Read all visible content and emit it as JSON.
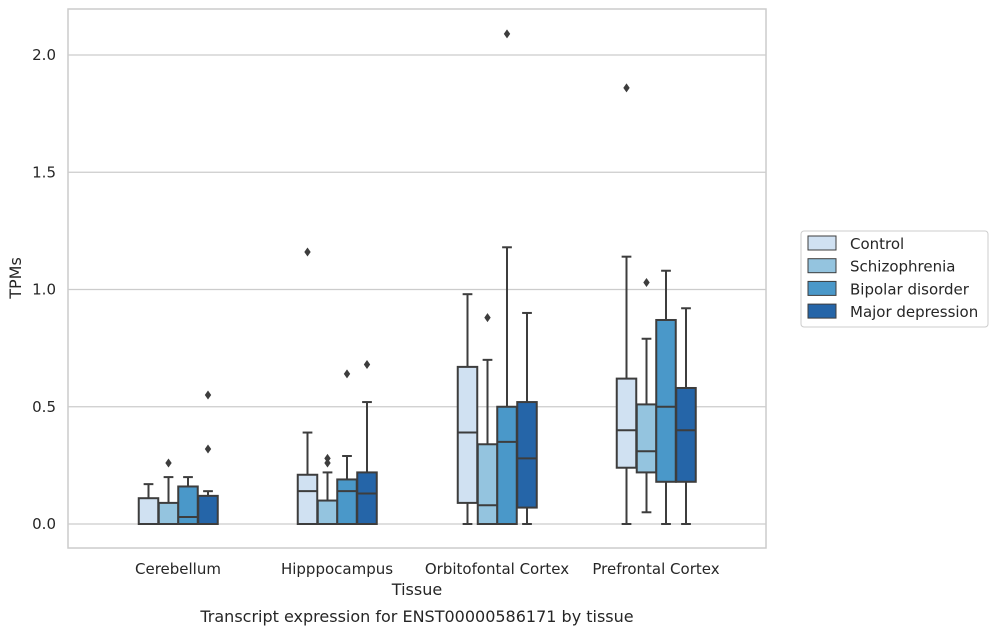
{
  "chart_data": {
    "type": "box",
    "title": "",
    "xlabel": "Tissue",
    "ylabel": "TPMs",
    "caption": "Transcript expression for ENST00000586171 by tissue",
    "ylim": [
      -0.1,
      2.2
    ],
    "yticks": [
      "0.0",
      "0.5",
      "1.0",
      "1.5",
      "2.0"
    ],
    "categories": [
      "Cerebellum",
      "Hipppocampus",
      "Orbitofontal Cortex",
      "Prefrontal Cortex"
    ],
    "grid": true,
    "legend_position": "right",
    "series": [
      {
        "name": "Control",
        "color": "#d0e1f2",
        "boxes": [
          {
            "min": 0.0,
            "q1": 0.0,
            "median": 0.0,
            "q3": 0.11,
            "max": 0.17,
            "outliers": []
          },
          {
            "min": 0.0,
            "q1": 0.0,
            "median": 0.14,
            "q3": 0.21,
            "max": 0.39,
            "outliers": [
              1.16
            ]
          },
          {
            "min": 0.0,
            "q1": 0.09,
            "median": 0.39,
            "q3": 0.67,
            "max": 0.98,
            "outliers": []
          },
          {
            "min": 0.0,
            "q1": 0.24,
            "median": 0.4,
            "q3": 0.62,
            "max": 1.14,
            "outliers": [
              1.86
            ]
          }
        ]
      },
      {
        "name": "Schizophrenia",
        "color": "#94c4df",
        "boxes": [
          {
            "min": 0.0,
            "q1": 0.0,
            "median": 0.0,
            "q3": 0.09,
            "max": 0.2,
            "outliers": [
              0.26
            ]
          },
          {
            "min": 0.0,
            "q1": 0.0,
            "median": 0.0,
            "q3": 0.1,
            "max": 0.22,
            "outliers": [
              0.26,
              0.28
            ]
          },
          {
            "min": 0.0,
            "q1": 0.0,
            "median": 0.08,
            "q3": 0.34,
            "max": 0.7,
            "outliers": [
              0.88
            ]
          },
          {
            "min": 0.05,
            "q1": 0.22,
            "median": 0.31,
            "q3": 0.51,
            "max": 0.79,
            "outliers": [
              1.03
            ]
          }
        ]
      },
      {
        "name": "Bipolar disorder",
        "color": "#4a98c9",
        "boxes": [
          {
            "min": 0.0,
            "q1": 0.0,
            "median": 0.03,
            "q3": 0.16,
            "max": 0.2,
            "outliers": []
          },
          {
            "min": 0.0,
            "q1": 0.0,
            "median": 0.14,
            "q3": 0.19,
            "max": 0.29,
            "outliers": [
              0.64
            ]
          },
          {
            "min": 0.0,
            "q1": 0.0,
            "median": 0.35,
            "q3": 0.5,
            "max": 1.18,
            "outliers": [
              2.09
            ]
          },
          {
            "min": 0.0,
            "q1": 0.18,
            "median": 0.5,
            "q3": 0.87,
            "max": 1.08,
            "outliers": []
          }
        ]
      },
      {
        "name": "Major depression",
        "color": "#2565a8",
        "boxes": [
          {
            "min": 0.0,
            "q1": 0.0,
            "median": 0.0,
            "q3": 0.12,
            "max": 0.14,
            "outliers": [
              0.32,
              0.55
            ]
          },
          {
            "min": 0.0,
            "q1": 0.0,
            "median": 0.13,
            "q3": 0.22,
            "max": 0.52,
            "outliers": [
              0.68
            ]
          },
          {
            "min": 0.0,
            "q1": 0.07,
            "median": 0.28,
            "q3": 0.52,
            "max": 0.9,
            "outliers": []
          },
          {
            "min": 0.0,
            "q1": 0.18,
            "median": 0.4,
            "q3": 0.58,
            "max": 0.92,
            "outliers": []
          }
        ]
      }
    ]
  }
}
